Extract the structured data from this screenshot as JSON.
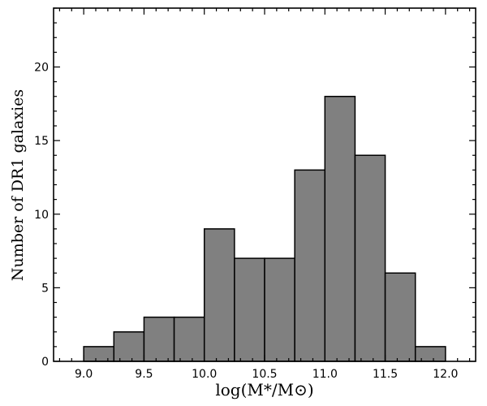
{
  "chart_data": {
    "type": "bar",
    "bin_edges": [
      9.0,
      9.25,
      9.5,
      9.75,
      10.0,
      10.25,
      10.5,
      10.75,
      11.0,
      11.25,
      11.5,
      11.75,
      12.0
    ],
    "values": [
      1,
      2,
      3,
      3,
      9,
      7,
      7,
      13,
      18,
      14,
      6,
      1
    ],
    "title": "",
    "xlabel": "log(M*/M⊙)",
    "ylabel": "Number of DR1 galaxies",
    "xlim": [
      8.75,
      12.25
    ],
    "ylim": [
      0,
      24
    ],
    "xticks": [
      9.0,
      9.5,
      10.0,
      10.5,
      11.0,
      11.5,
      12.0
    ],
    "xtick_labels": [
      "9.0",
      "9.5",
      "10.0",
      "10.5",
      "11.0",
      "11.5",
      "12.0"
    ],
    "yticks": [
      0,
      5,
      10,
      15,
      20
    ],
    "ytick_labels": [
      "0",
      "5",
      "10",
      "15",
      "20"
    ],
    "bar_color": "#808080",
    "edge_color": "#000000",
    "grid": false,
    "legend": "none"
  }
}
